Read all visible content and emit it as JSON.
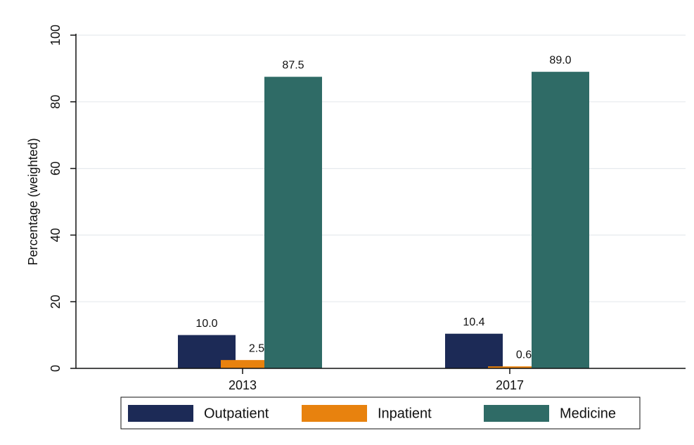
{
  "chart_data": {
    "type": "bar",
    "categories": [
      "2013",
      "2017"
    ],
    "y_label": "Percentage (weighted)",
    "series": [
      {
        "name": "Outpatient",
        "color": "#1c2a56",
        "values": [
          10,
          10.4
        ],
        "value_labels": [
          "10.0",
          "10.4"
        ]
      },
      {
        "name": "Inpatient",
        "color": "#e8820e",
        "values": [
          2.5,
          0.6
        ],
        "value_labels": [
          "2.5",
          "0.6"
        ]
      },
      {
        "name": "Medicine",
        "color": "#2f6b66",
        "values": [
          87.5,
          89
        ],
        "value_labels": [
          "87.5",
          "89.0"
        ]
      }
    ],
    "ylim": [
      0,
      100
    ],
    "yticks": [
      0,
      20,
      40,
      60,
      80,
      100
    ],
    "grid": true,
    "legend": "bottom"
  }
}
